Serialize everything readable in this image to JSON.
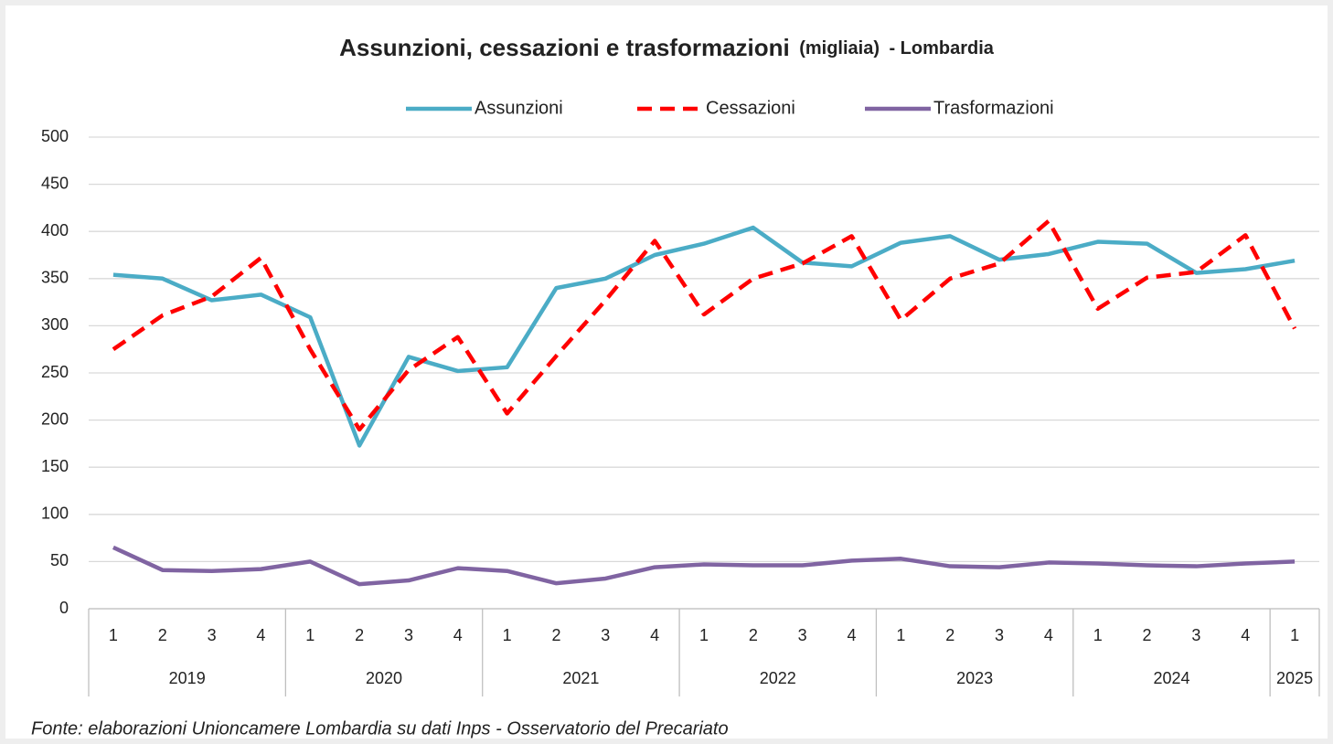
{
  "chart_data": {
    "type": "line",
    "title": "Assunzioni, cessazioni e trasformazioni",
    "title_unit": "(migliaia)",
    "title_suffix": "- Lombardia",
    "source": "Fonte: elaborazioni Unioncamere Lombardia su dati Inps - Osservatorio del Precariato",
    "categories": [
      {
        "quarter": "1",
        "year": "2019"
      },
      {
        "quarter": "2",
        "year": "2019"
      },
      {
        "quarter": "3",
        "year": "2019"
      },
      {
        "quarter": "4",
        "year": "2019"
      },
      {
        "quarter": "1",
        "year": "2020"
      },
      {
        "quarter": "2",
        "year": "2020"
      },
      {
        "quarter": "3",
        "year": "2020"
      },
      {
        "quarter": "4",
        "year": "2020"
      },
      {
        "quarter": "1",
        "year": "2021"
      },
      {
        "quarter": "2",
        "year": "2021"
      },
      {
        "quarter": "3",
        "year": "2021"
      },
      {
        "quarter": "4",
        "year": "2021"
      },
      {
        "quarter": "1",
        "year": "2022"
      },
      {
        "quarter": "2",
        "year": "2022"
      },
      {
        "quarter": "3",
        "year": "2022"
      },
      {
        "quarter": "4",
        "year": "2022"
      },
      {
        "quarter": "1",
        "year": "2023"
      },
      {
        "quarter": "2",
        "year": "2023"
      },
      {
        "quarter": "3",
        "year": "2023"
      },
      {
        "quarter": "4",
        "year": "2023"
      },
      {
        "quarter": "1",
        "year": "2024"
      },
      {
        "quarter": "2",
        "year": "2024"
      },
      {
        "quarter": "3",
        "year": "2024"
      },
      {
        "quarter": "4",
        "year": "2024"
      },
      {
        "quarter": "1",
        "year": "2025"
      }
    ],
    "series": [
      {
        "name": "Assunzioni",
        "color": "#4bacc6",
        "dash": false,
        "values": [
          354,
          350,
          327,
          333,
          309,
          173,
          267,
          252,
          256,
          340,
          350,
          375,
          387,
          404,
          367,
          363,
          388,
          395,
          370,
          376,
          389,
          387,
          356,
          360,
          369
        ]
      },
      {
        "name": "Cessazioni",
        "color": "#ff0000",
        "dash": true,
        "values": [
          275,
          311,
          331,
          372,
          275,
          190,
          253,
          288,
          207,
          268,
          327,
          390,
          312,
          350,
          366,
          395,
          306,
          350,
          366,
          411,
          318,
          351,
          357,
          396,
          297
        ]
      },
      {
        "name": "Trasformazioni",
        "color": "#8064a2",
        "dash": false,
        "values": [
          65,
          41,
          40,
          42,
          50,
          26,
          30,
          43,
          40,
          27,
          32,
          44,
          47,
          46,
          46,
          51,
          53,
          45,
          44,
          49,
          48,
          46,
          45,
          48,
          50
        ]
      }
    ],
    "ylim": [
      0,
      500
    ],
    "yticks": [
      0,
      50,
      100,
      150,
      200,
      250,
      300,
      350,
      400,
      450,
      500
    ],
    "grid": true,
    "legend": "top"
  }
}
